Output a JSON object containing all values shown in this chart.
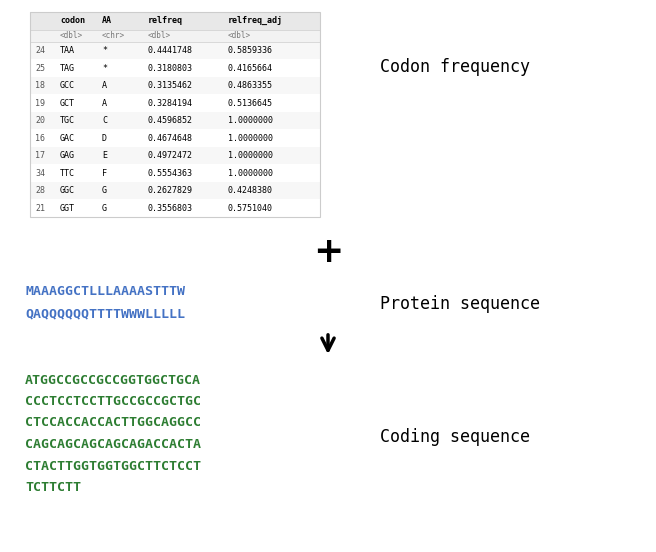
{
  "table_rows": [
    {
      "idx": "24",
      "codon": "TAA",
      "AA": "*",
      "relfreq": "0.4441748",
      "relfreq_adj": "0.5859336"
    },
    {
      "idx": "25",
      "codon": "TAG",
      "AA": "*",
      "relfreq": "0.3180803",
      "relfreq_adj": "0.4165664"
    },
    {
      "idx": "18",
      "codon": "GCC",
      "AA": "A",
      "relfreq": "0.3135462",
      "relfreq_adj": "0.4863355"
    },
    {
      "idx": "19",
      "codon": "GCT",
      "AA": "A",
      "relfreq": "0.3284194",
      "relfreq_adj": "0.5136645"
    },
    {
      "idx": "20",
      "codon": "TGC",
      "AA": "C",
      "relfreq": "0.4596852",
      "relfreq_adj": "1.0000000"
    },
    {
      "idx": "16",
      "codon": "GAC",
      "AA": "D",
      "relfreq": "0.4674648",
      "relfreq_adj": "1.0000000"
    },
    {
      "idx": "17",
      "codon": "GAG",
      "AA": "E",
      "relfreq": "0.4972472",
      "relfreq_adj": "1.0000000"
    },
    {
      "idx": "34",
      "codon": "TTC",
      "AA": "F",
      "relfreq": "0.5554363",
      "relfreq_adj": "1.0000000"
    },
    {
      "idx": "28",
      "codon": "GGC",
      "AA": "G",
      "relfreq": "0.2627829",
      "relfreq_adj": "0.4248380"
    },
    {
      "idx": "21",
      "codon": "GGT",
      "AA": "G",
      "relfreq": "0.3556803",
      "relfreq_adj": "0.5751040"
    }
  ],
  "plus_sign": "+",
  "protein_seq_line1": "MAAAGGCTLLLAAAASTTTW",
  "protein_seq_line2": "QAQQQQQQTTTTWWWLLLLL",
  "protein_color": "#4472C4",
  "coding_seq_lines": [
    "ATGGCCGCCGCCGGTGGCTGCA",
    "CCCTCCTCCTTGCCGCCGCTGC",
    "CTCCACCACCACTTGGCAGGCC",
    "CAGCAGCAGCAGCAGACCACTA",
    "CTACTTGGTGGTGGCTTCTCCT",
    "TCTTCTT"
  ],
  "coding_color": "#2D7D32",
  "label_codon_freq": "Codon frequency",
  "label_protein_seq": "Protein sequence",
  "label_coding_seq": "Coding sequence",
  "label_fontsize": 12,
  "seq_fontsize": 9.5,
  "table_fontsize": 6.0,
  "bg_color": "#ffffff"
}
